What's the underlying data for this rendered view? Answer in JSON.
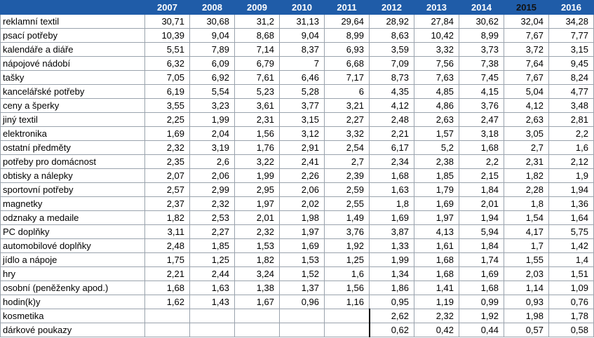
{
  "table": {
    "corner": "",
    "years": [
      "2007",
      "2008",
      "2009",
      "2010",
      "2011",
      "2012",
      "2013",
      "2014",
      "2015",
      "2016"
    ],
    "rows": [
      {
        "label": "reklamní textil",
        "values": [
          "30,71",
          "30,68",
          "31,2",
          "31,13",
          "29,64",
          "28,92",
          "27,84",
          "30,62",
          "32,04",
          "34,28"
        ]
      },
      {
        "label": "psací potřeby",
        "values": [
          "10,39",
          "9,04",
          "8,68",
          "9,04",
          "8,99",
          "8,63",
          "10,42",
          "8,99",
          "7,67",
          "7,77"
        ]
      },
      {
        "label": "kalendáře a diáře",
        "values": [
          "5,51",
          "7,89",
          "7,14",
          "8,37",
          "6,93",
          "3,59",
          "3,32",
          "3,73",
          "3,72",
          "3,15"
        ]
      },
      {
        "label": "nápojové nádobí",
        "values": [
          "6,32",
          "6,09",
          "6,79",
          "7",
          "6,68",
          "7,09",
          "7,56",
          "7,38",
          "7,64",
          "9,45"
        ]
      },
      {
        "label": "tašky",
        "values": [
          "7,05",
          "6,92",
          "7,61",
          "6,46",
          "7,17",
          "8,73",
          "7,63",
          "7,45",
          "7,67",
          "8,24"
        ]
      },
      {
        "label": "kancelářské potřeby",
        "values": [
          "6,19",
          "5,54",
          "5,23",
          "5,28",
          "6",
          "4,35",
          "4,85",
          "4,15",
          "5,04",
          "4,77"
        ]
      },
      {
        "label": "ceny a šperky",
        "values": [
          "3,55",
          "3,23",
          "3,61",
          "3,77",
          "3,21",
          "4,12",
          "4,86",
          "3,76",
          "4,12",
          "3,48"
        ]
      },
      {
        "label": "jiný textil",
        "values": [
          "2,25",
          "1,99",
          "2,31",
          "3,15",
          "2,27",
          "2,48",
          "2,63",
          "2,47",
          "2,63",
          "2,81"
        ]
      },
      {
        "label": "elektronika",
        "values": [
          "1,69",
          "2,04",
          "1,56",
          "3,12",
          "3,32",
          "2,21",
          "1,57",
          "3,18",
          "3,05",
          "2,2"
        ]
      },
      {
        "label": "ostatní předměty",
        "values": [
          "2,32",
          "3,19",
          "1,76",
          "2,91",
          "2,54",
          "6,17",
          "5,2",
          "1,68",
          "2,7",
          "1,6"
        ]
      },
      {
        "label": "potřeby pro domácnost",
        "values": [
          "2,35",
          "2,6",
          "3,22",
          "2,41",
          "2,7",
          "2,34",
          "2,38",
          "2,2",
          "2,31",
          "2,12"
        ]
      },
      {
        "label": "obtisky a nálepky",
        "values": [
          "2,07",
          "2,06",
          "1,99",
          "2,26",
          "2,39",
          "1,68",
          "1,85",
          "2,15",
          "1,82",
          "1,9"
        ]
      },
      {
        "label": "sportovní potřeby",
        "values": [
          "2,57",
          "2,99",
          "2,95",
          "2,06",
          "2,59",
          "1,63",
          "1,79",
          "1,84",
          "2,28",
          "1,94"
        ]
      },
      {
        "label": "magnetky",
        "values": [
          "2,37",
          "2,32",
          "1,97",
          "2,02",
          "2,55",
          "1,8",
          "1,69",
          "2,01",
          "1,8",
          "1,36"
        ]
      },
      {
        "label": "odznaky a medaile",
        "values": [
          "1,82",
          "2,53",
          "2,01",
          "1,98",
          "1,49",
          "1,69",
          "1,97",
          "1,94",
          "1,54",
          "1,64"
        ]
      },
      {
        "label": "PC doplňky",
        "values": [
          "3,11",
          "2,27",
          "2,32",
          "1,97",
          "3,76",
          "3,87",
          "4,13",
          "5,94",
          "4,17",
          "5,75"
        ]
      },
      {
        "label": "automobilové doplňky",
        "values": [
          "2,48",
          "1,85",
          "1,53",
          "1,69",
          "1,92",
          "1,33",
          "1,61",
          "1,84",
          "1,7",
          "1,42"
        ]
      },
      {
        "label": "jídlo a nápoje",
        "values": [
          "1,75",
          "1,25",
          "1,82",
          "1,53",
          "1,25",
          "1,99",
          "1,68",
          "1,74",
          "1,55",
          "1,4"
        ]
      },
      {
        "label": "hry",
        "values": [
          "2,21",
          "2,44",
          "3,24",
          "1,52",
          "1,6",
          "1,34",
          "1,68",
          "1,69",
          "2,03",
          "1,51"
        ]
      },
      {
        "label": "osobní  (peněženky apod.)",
        "values": [
          "1,68",
          "1,63",
          "1,38",
          "1,37",
          "1,56",
          "1,86",
          "1,41",
          "1,68",
          "1,14",
          "1,09"
        ]
      },
      {
        "label": "hodin(k)y",
        "values": [
          "1,62",
          "1,43",
          "1,67",
          "0,96",
          "1,16",
          "0,95",
          "1,19",
          "0,99",
          "0,93",
          "0,76"
        ]
      },
      {
        "label": "kosmetika",
        "values": [
          "",
          "",
          "",
          "",
          "",
          "2,62",
          "2,32",
          "1,92",
          "1,98",
          "1,78"
        ]
      },
      {
        "label": "dárkové poukazy",
        "values": [
          "",
          "",
          "",
          "",
          "",
          "0,62",
          "0,42",
          "0,44",
          "0,57",
          "0,58"
        ]
      }
    ]
  },
  "colors": {
    "header_bg": "#1f5ca8",
    "header_text": "#ffffff",
    "highlight_year_text": "#111111",
    "grid": "#9aa3ad"
  }
}
